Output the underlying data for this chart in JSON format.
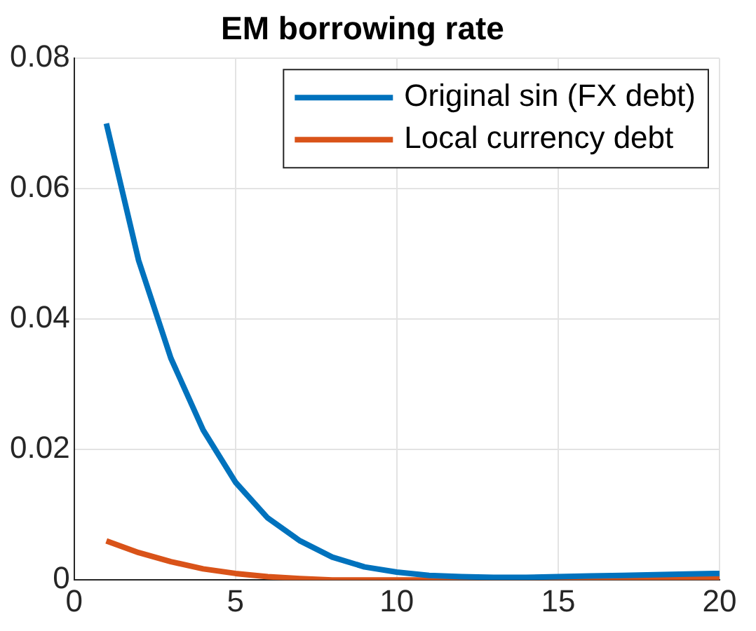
{
  "chart_data": {
    "type": "line",
    "title": "EM borrowing rate",
    "x": [
      1,
      2,
      3,
      4,
      5,
      6,
      7,
      8,
      9,
      10,
      11,
      12,
      13,
      14,
      15,
      16,
      17,
      18,
      19,
      20
    ],
    "series": [
      {
        "name": "Original sin (FX debt)",
        "color": "#0072bd",
        "values": [
          0.07,
          0.049,
          0.034,
          0.023,
          0.015,
          0.0095,
          0.006,
          0.0035,
          0.002,
          0.0012,
          0.0007,
          0.0005,
          0.0004,
          0.0004,
          0.0005,
          0.0006,
          0.0007,
          0.0008,
          0.0009,
          0.001
        ]
      },
      {
        "name": "Local currency debt",
        "color": "#d95319",
        "values": [
          0.006,
          0.0042,
          0.0028,
          0.0017,
          0.001,
          0.0005,
          0.0002,
          0,
          0,
          0,
          0,
          0,
          0,
          0,
          0,
          0.0001,
          0.0001,
          0.0001,
          0.0002,
          0.0002
        ]
      }
    ],
    "xlim": [
      0,
      20
    ],
    "xticks": [
      0,
      5,
      10,
      15,
      20
    ],
    "ylim": [
      0,
      0.08
    ],
    "yticks": [
      0,
      0.02,
      0.04,
      0.06,
      0.08
    ],
    "grid": true,
    "legend": "top right",
    "marker": "none",
    "line_style": "solid"
  }
}
